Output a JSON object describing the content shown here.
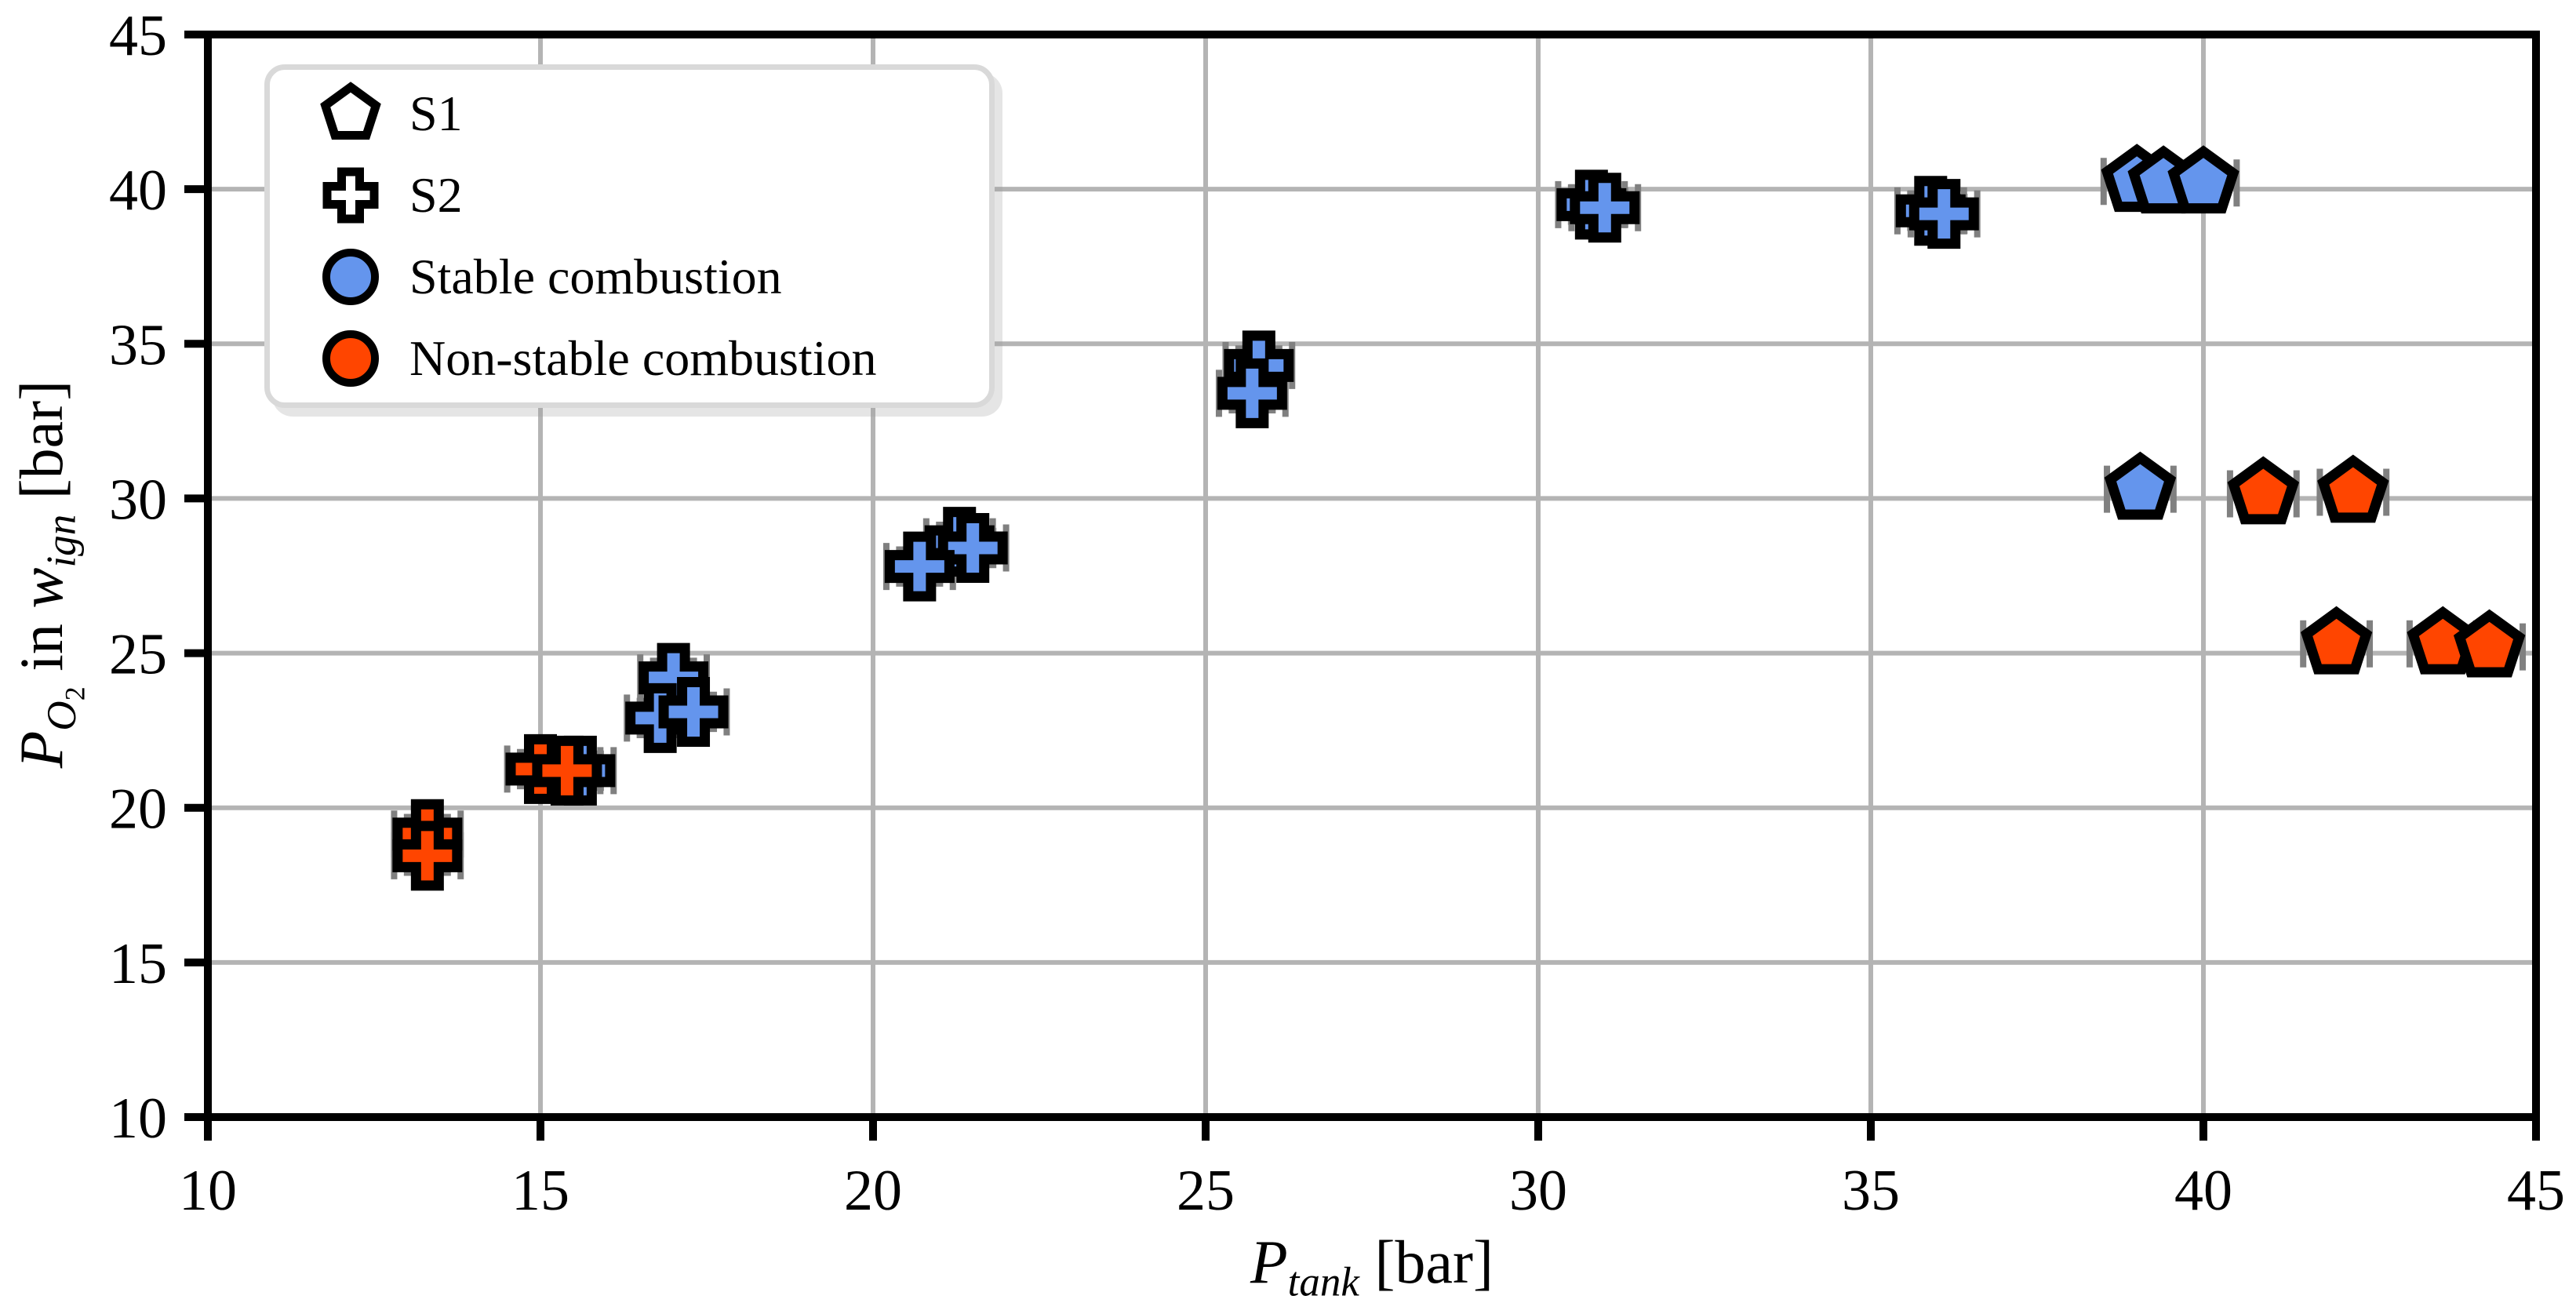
{
  "chart_data": {
    "type": "scatter",
    "title": "",
    "xlabel": {
      "var": "P",
      "sub": "tank",
      "unit": " [bar]"
    },
    "ylabel": {
      "var": "P",
      "sub_var": "O",
      "sub_num": "2",
      "mid": " in ",
      "var2": "w",
      "sub2": "ign",
      "unit": " [bar]"
    },
    "xlim": [
      10,
      45
    ],
    "ylim": [
      10,
      45
    ],
    "x_ticks": [
      10,
      15,
      20,
      25,
      30,
      35,
      40,
      45
    ],
    "y_ticks": [
      10,
      15,
      20,
      25,
      30,
      35,
      40,
      45
    ],
    "grid": true,
    "legend_position": "upper-left",
    "legend": {
      "entries": [
        {
          "label": "S1",
          "marker": "pentagon",
          "fill": "#ffffff"
        },
        {
          "label": "S2",
          "marker": "cross",
          "fill": "#ffffff"
        },
        {
          "label": "Stable combustion",
          "marker": "circle",
          "fill": "#6495ED"
        },
        {
          "label": "Non-stable combustion",
          "marker": "circle",
          "fill": "#FF4500"
        }
      ]
    },
    "colors": {
      "stable": "#6495ED",
      "non_stable": "#FF4500",
      "error_bar": "#808080",
      "grid": "#b4b4b4",
      "axis": "#000000"
    },
    "error": {
      "x": 0.5,
      "y": 0.55
    },
    "series_note": "shape cross = series S2, shape pentagon = series S1; points listed back-to-front draw order",
    "points": [
      {
        "x": 13.3,
        "y": 19.15,
        "shape": "cross",
        "status": "non_stable"
      },
      {
        "x": 13.3,
        "y": 18.45,
        "shape": "cross",
        "status": "non_stable"
      },
      {
        "x": 15.6,
        "y": 21.2,
        "shape": "cross",
        "status": "stable"
      },
      {
        "x": 15.0,
        "y": 21.25,
        "shape": "cross",
        "status": "non_stable"
      },
      {
        "x": 15.4,
        "y": 21.2,
        "shape": "cross",
        "status": "non_stable"
      },
      {
        "x": 17.0,
        "y": 24.2,
        "shape": "cross",
        "status": "stable"
      },
      {
        "x": 16.8,
        "y": 22.9,
        "shape": "cross",
        "status": "stable"
      },
      {
        "x": 17.3,
        "y": 23.1,
        "shape": "cross",
        "status": "stable"
      },
      {
        "x": 21.3,
        "y": 28.6,
        "shape": "cross",
        "status": "stable"
      },
      {
        "x": 21.5,
        "y": 28.4,
        "shape": "cross",
        "status": "stable"
      },
      {
        "x": 20.7,
        "y": 27.8,
        "shape": "cross",
        "status": "stable"
      },
      {
        "x": 25.8,
        "y": 34.3,
        "shape": "cross",
        "status": "stable"
      },
      {
        "x": 25.7,
        "y": 33.4,
        "shape": "cross",
        "status": "stable"
      },
      {
        "x": 30.8,
        "y": 39.5,
        "shape": "cross",
        "status": "stable"
      },
      {
        "x": 31.0,
        "y": 39.4,
        "shape": "cross",
        "status": "stable"
      },
      {
        "x": 35.9,
        "y": 39.3,
        "shape": "cross",
        "status": "stable"
      },
      {
        "x": 36.1,
        "y": 39.2,
        "shape": "cross",
        "status": "stable"
      },
      {
        "x": 39.0,
        "y": 40.25,
        "shape": "pentagon",
        "status": "stable"
      },
      {
        "x": 39.4,
        "y": 40.2,
        "shape": "pentagon",
        "status": "stable"
      },
      {
        "x": 40.0,
        "y": 40.2,
        "shape": "pentagon",
        "status": "stable"
      },
      {
        "x": 39.05,
        "y": 30.3,
        "shape": "pentagon",
        "status": "stable"
      },
      {
        "x": 40.9,
        "y": 30.15,
        "shape": "pentagon",
        "status": "non_stable"
      },
      {
        "x": 42.25,
        "y": 30.2,
        "shape": "pentagon",
        "status": "non_stable"
      },
      {
        "x": 42.0,
        "y": 25.3,
        "shape": "pentagon",
        "status": "non_stable"
      },
      {
        "x": 43.6,
        "y": 25.3,
        "shape": "pentagon",
        "status": "non_stable"
      },
      {
        "x": 44.3,
        "y": 25.2,
        "shape": "pentagon",
        "status": "non_stable"
      }
    ]
  }
}
